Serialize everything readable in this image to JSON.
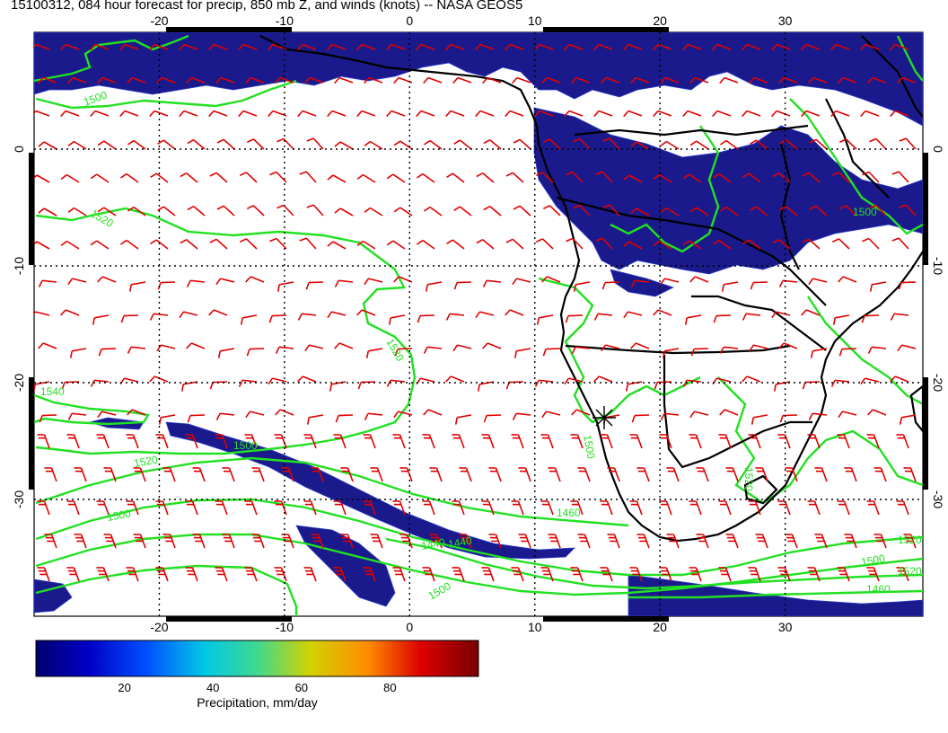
{
  "title": "15100312, 084 hour forecast for precip, 850 mb Z, and winds (knots) -- NASA GEOS5",
  "map": {
    "lon_range": [
      -30,
      41
    ],
    "lat_range": [
      -40,
      10
    ],
    "lon_ticks": [
      "-20",
      "-10",
      "0",
      "10",
      "20",
      "30"
    ],
    "lon_tick_values": [
      -20,
      -10,
      0,
      10,
      20,
      30
    ],
    "lat_ticks": [
      "0",
      "-10",
      "-20",
      "-30"
    ],
    "lat_tick_values": [
      0,
      -10,
      -20,
      -30
    ],
    "contour_labels": [
      "1500",
      "1520",
      "1520",
      "1540",
      "1520",
      "1500",
      "1440",
      "1440",
      "1460",
      "1500",
      "1520",
      "1500",
      "1500",
      "1460",
      "1520",
      "1500",
      "1520",
      "1500"
    ],
    "colors": {
      "precip_dark": "#1a1a8c",
      "contour": "#22e022",
      "wind_barb": "#e00000",
      "coast": "#000000"
    }
  },
  "colorbar": {
    "label": "Precipitation, mm/day",
    "ticks": [
      "20",
      "40",
      "60",
      "80"
    ],
    "tick_values": [
      20,
      40,
      60,
      80
    ],
    "range": [
      0,
      100
    ],
    "colors": [
      "#000080",
      "#0000ff",
      "#00aaff",
      "#00e0c0",
      "#60d060",
      "#d0d000",
      "#ff8000",
      "#e00000",
      "#800000"
    ]
  }
}
